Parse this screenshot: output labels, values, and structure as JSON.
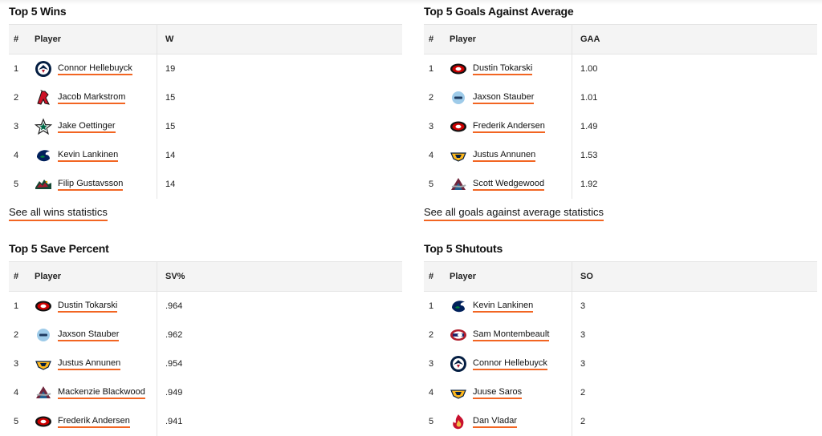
{
  "wins": {
    "title": "Top 5 Wins",
    "headers": {
      "rank": "#",
      "player": "Player",
      "value": "W"
    },
    "rows": [
      {
        "rank": "1",
        "player": "Connor Hellebuyck",
        "value": "19",
        "team_icon": "jets-logo-icon"
      },
      {
        "rank": "2",
        "player": "Jacob Markstrom",
        "value": "15",
        "team_icon": "devils-logo-icon"
      },
      {
        "rank": "3",
        "player": "Jake Oettinger",
        "value": "15",
        "team_icon": "stars-logo-icon"
      },
      {
        "rank": "4",
        "player": "Kevin Lankinen",
        "value": "14",
        "team_icon": "canucks-logo-icon"
      },
      {
        "rank": "5",
        "player": "Filip Gustavsson",
        "value": "14",
        "team_icon": "wild-logo-icon"
      }
    ],
    "see_all": "See all wins statistics"
  },
  "gaa": {
    "title": "Top 5 Goals Against Average",
    "headers": {
      "rank": "#",
      "player": "Player",
      "value": "GAA"
    },
    "rows": [
      {
        "rank": "1",
        "player": "Dustin Tokarski",
        "value": "1.00",
        "team_icon": "hurricanes-logo-icon"
      },
      {
        "rank": "2",
        "player": "Jaxson Stauber",
        "value": "1.01",
        "team_icon": "utah-logo-icon"
      },
      {
        "rank": "3",
        "player": "Frederik Andersen",
        "value": "1.49",
        "team_icon": "hurricanes-logo-icon"
      },
      {
        "rank": "4",
        "player": "Justus Annunen",
        "value": "1.53",
        "team_icon": "predators-logo-icon"
      },
      {
        "rank": "5",
        "player": "Scott Wedgewood",
        "value": "1.92",
        "team_icon": "avalanche-logo-icon"
      }
    ],
    "see_all": "See all goals against average statistics"
  },
  "svp": {
    "title": "Top 5 Save Percent",
    "headers": {
      "rank": "#",
      "player": "Player",
      "value": "SV%"
    },
    "rows": [
      {
        "rank": "1",
        "player": "Dustin Tokarski",
        "value": ".964",
        "team_icon": "hurricanes-logo-icon"
      },
      {
        "rank": "2",
        "player": "Jaxson Stauber",
        "value": ".962",
        "team_icon": "utah-logo-icon"
      },
      {
        "rank": "3",
        "player": "Justus Annunen",
        "value": ".954",
        "team_icon": "predators-logo-icon"
      },
      {
        "rank": "4",
        "player": "Mackenzie Blackwood",
        "value": ".949",
        "team_icon": "avalanche-logo-icon"
      },
      {
        "rank": "5",
        "player": "Frederik Andersen",
        "value": ".941",
        "team_icon": "hurricanes-logo-icon"
      }
    ]
  },
  "so": {
    "title": "Top 5 Shutouts",
    "headers": {
      "rank": "#",
      "player": "Player",
      "value": "SO"
    },
    "rows": [
      {
        "rank": "1",
        "player": "Kevin Lankinen",
        "value": "3",
        "team_icon": "canucks-logo-icon"
      },
      {
        "rank": "2",
        "player": "Sam Montembeault",
        "value": "3",
        "team_icon": "canadiens-logo-icon"
      },
      {
        "rank": "3",
        "player": "Connor Hellebuyck",
        "value": "3",
        "team_icon": "jets-logo-icon"
      },
      {
        "rank": "4",
        "player": "Juuse Saros",
        "value": "2",
        "team_icon": "predators-logo-icon"
      },
      {
        "rank": "5",
        "player": "Dan Vladar",
        "value": "2",
        "team_icon": "flames-logo-icon"
      }
    ]
  },
  "colors": {
    "link_underline": "#f26522",
    "header_bg": "#f4f4f4",
    "border": "#e4e4e4"
  }
}
